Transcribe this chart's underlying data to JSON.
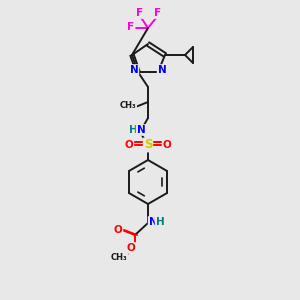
{
  "bg_color": "#e8e8e8",
  "bond_color": "#1a1a1a",
  "bond_width": 1.4,
  "atom_colors": {
    "F": "#ff00dd",
    "N": "#0000ff",
    "O": "#ff0000",
    "S": "#cccc00",
    "H": "#008080",
    "C": "#1a1a1a"
  },
  "figsize": [
    3.0,
    3.0
  ],
  "dpi": 100
}
